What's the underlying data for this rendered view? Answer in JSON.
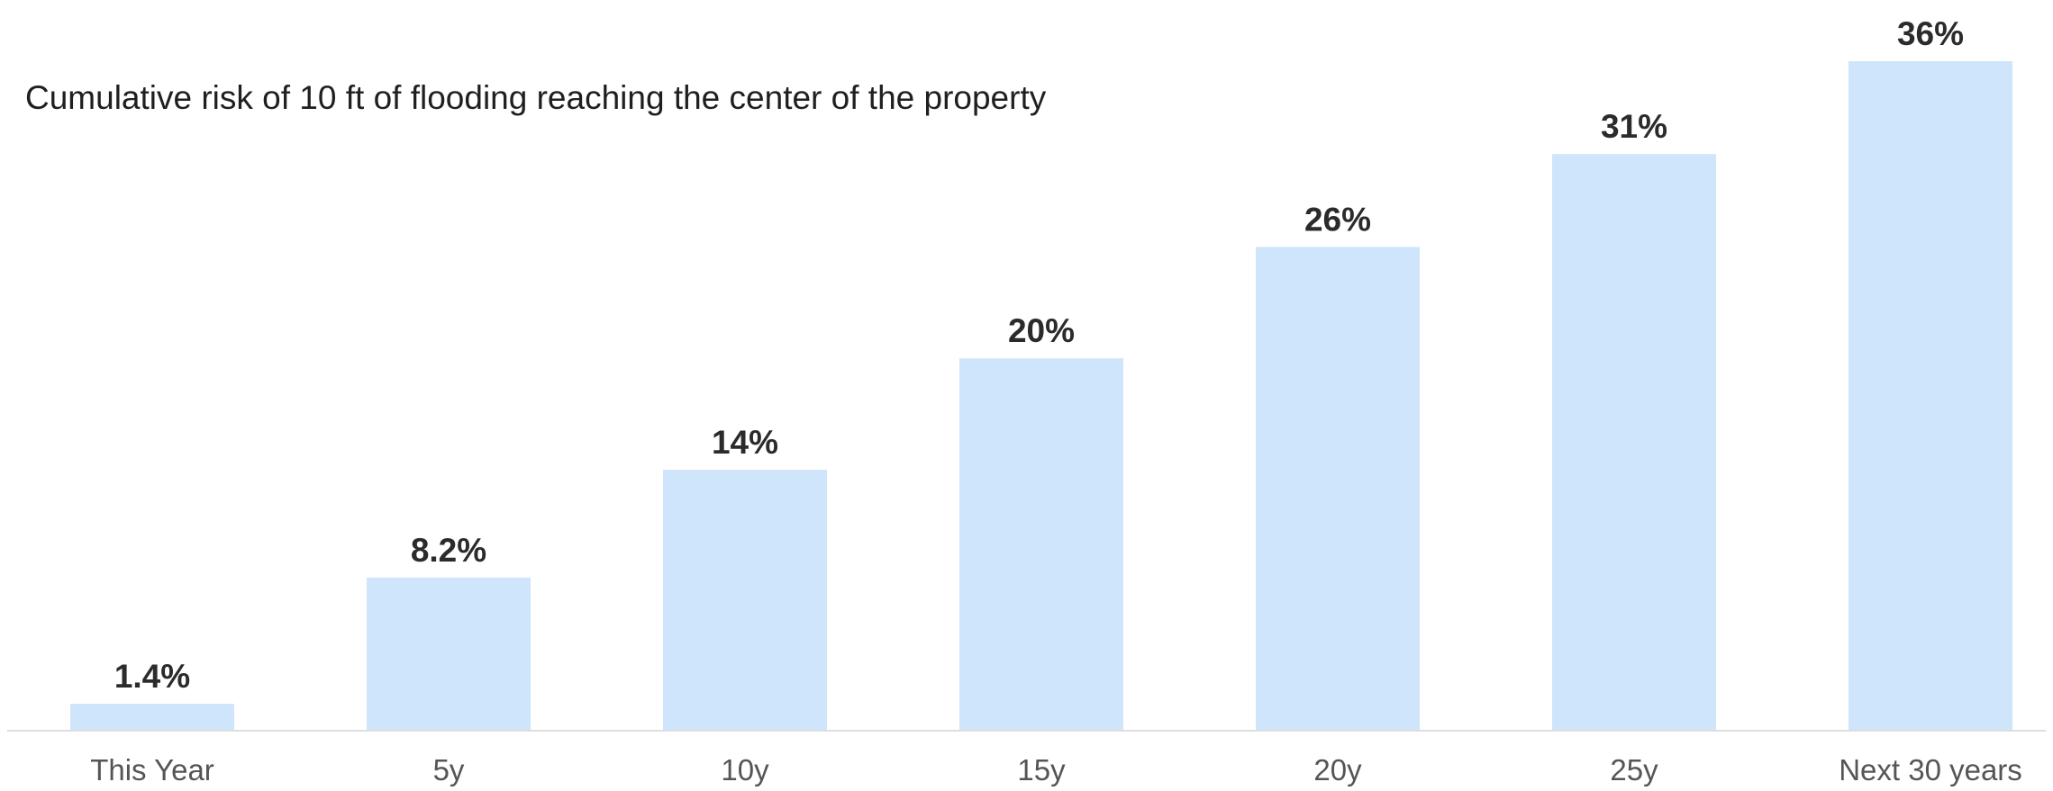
{
  "chart_data": {
    "type": "bar",
    "title": "Cumulative risk of 10 ft of flooding reaching the center of the property",
    "categories": [
      "This Year",
      "5y",
      "10y",
      "15y",
      "20y",
      "25y",
      "Next 30 years"
    ],
    "values": [
      1.4,
      8.2,
      14,
      20,
      26,
      31,
      36
    ],
    "value_labels": [
      "1.4%",
      "8.2%",
      "14%",
      "20%",
      "26%",
      "31%",
      "36%"
    ],
    "xlabel": "",
    "ylabel": "",
    "ylim": [
      0,
      36
    ],
    "grid": false,
    "legend": "none"
  },
  "colors": {
    "bar": "#cfe5fb",
    "baseline": "#dedede",
    "value_text": "#2b2b2b",
    "tick_text": "#555555",
    "title_text": "#1f1f1f"
  }
}
